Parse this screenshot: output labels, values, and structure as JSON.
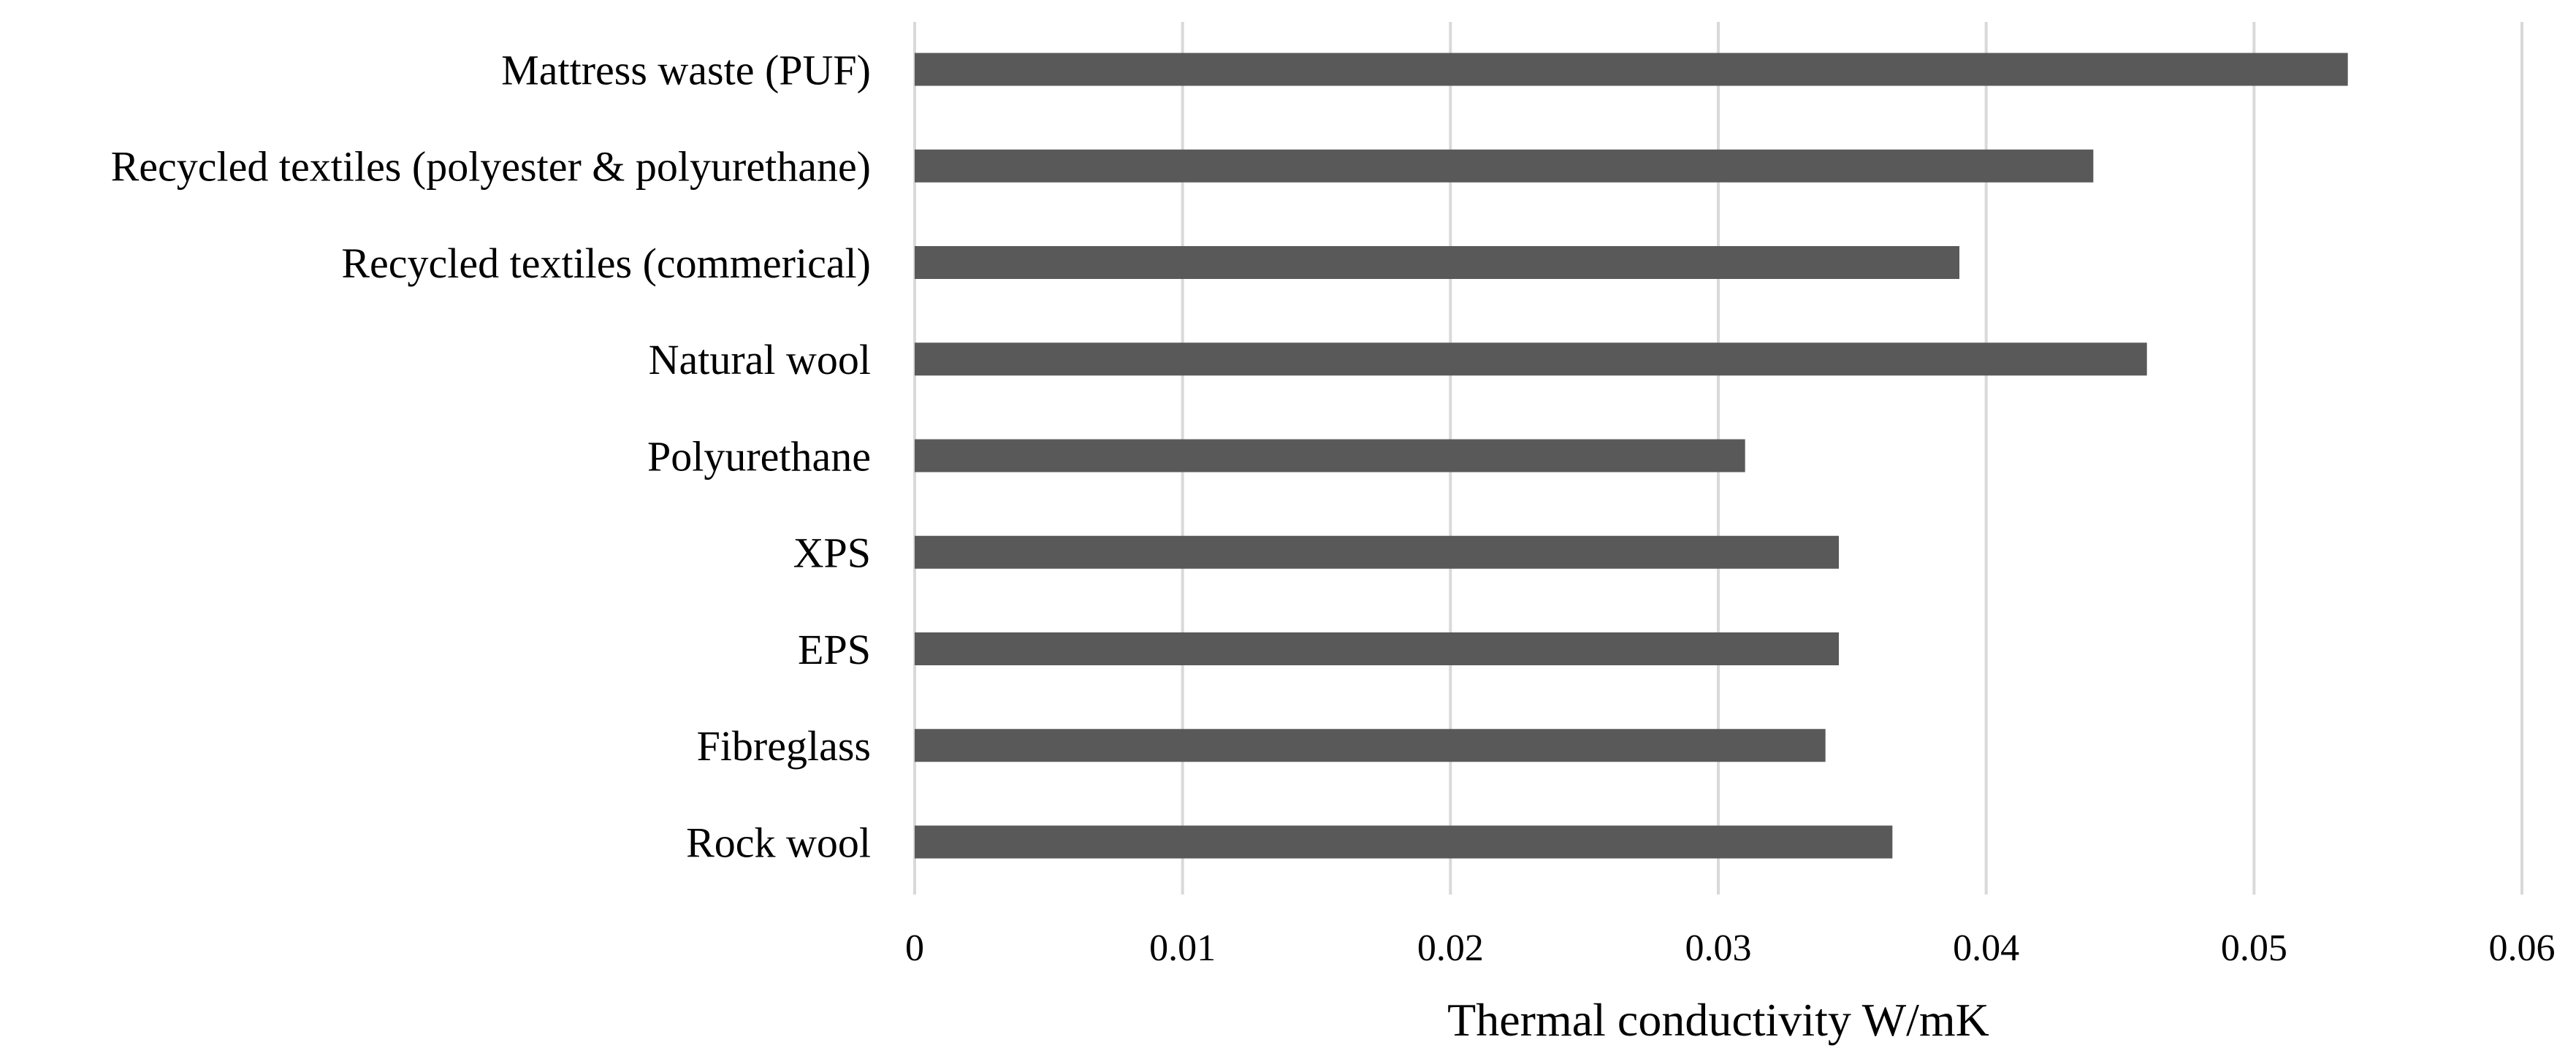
{
  "chart_data": {
    "type": "bar",
    "orientation": "horizontal",
    "categories": [
      "Mattress waste (PUF)",
      "Recycled textiles (polyester & polyurethane)",
      "Recycled textiles (commerical)",
      "Natural wool",
      "Polyurethane",
      "XPS",
      "EPS",
      "Fibreglass",
      "Rock wool"
    ],
    "values": [
      0.0535,
      0.044,
      0.039,
      0.046,
      0.031,
      0.0345,
      0.0345,
      0.034,
      0.0365
    ],
    "xlabel": "Thermal conductivity W/mK",
    "xlim": [
      0,
      0.06
    ],
    "ticks": [
      0,
      0.01,
      0.02,
      0.03,
      0.04,
      0.05,
      0.06
    ],
    "tick_labels": [
      "0",
      "0.01",
      "0.02",
      "0.03",
      "0.04",
      "0.05",
      "0.06"
    ],
    "grid": "vertical",
    "legend": "none",
    "bar_color": "#595959"
  }
}
